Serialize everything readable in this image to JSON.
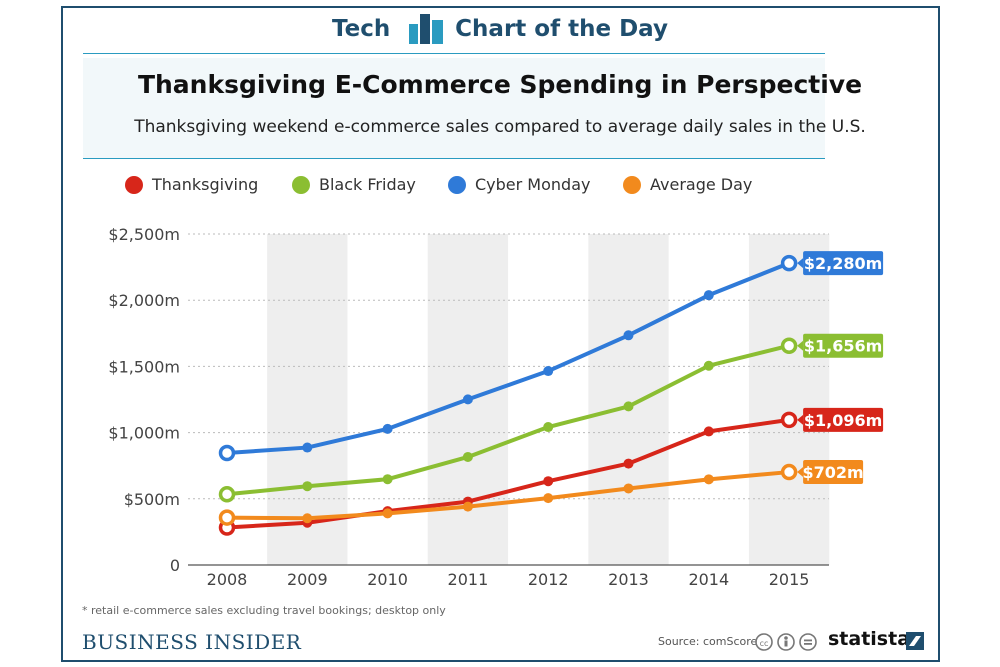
{
  "header": {
    "left_word": "Tech",
    "right_words": "Chart of the Day"
  },
  "footer": {
    "footnote": "* retail e-commerce sales excluding travel bookings; desktop only",
    "publisher": "BUSINESS INSIDER",
    "source": "Source: comScore",
    "brand": "statista"
  },
  "colors": {
    "navy": "#1f4e6e",
    "teal": "#2a9bc0"
  },
  "chart_data": {
    "type": "line",
    "title": "Thanksgiving E-Commerce Spending in Perspective",
    "subtitle": "Thanksgiving weekend e-commerce sales compared to average daily sales in the U.S.",
    "x": [
      "2008",
      "2009",
      "2010",
      "2011",
      "2012",
      "2013",
      "2014",
      "2015"
    ],
    "ylim": [
      0,
      2500
    ],
    "yticks": [
      {
        "value": 0,
        "label": "0"
      },
      {
        "value": 500,
        "label": "$500m"
      },
      {
        "value": 1000,
        "label": "$1,000m"
      },
      {
        "value": 1500,
        "label": "$1,500m"
      },
      {
        "value": 2000,
        "label": "$2,000m"
      },
      {
        "value": 2500,
        "label": "$2,500m"
      }
    ],
    "legend_position": "top",
    "series": [
      {
        "name": "Thanksgiving",
        "color": "#d7261a",
        "values": [
          283,
          319,
          407,
          479,
          633,
          766,
          1009,
          1096
        ],
        "end_label": "$1,096m"
      },
      {
        "name": "Black Friday",
        "color": "#8bbe32",
        "values": [
          534,
          595,
          648,
          816,
          1042,
          1198,
          1505,
          1656
        ],
        "end_label": "$1,656m"
      },
      {
        "name": "Cyber Monday",
        "color": "#2f7ad8",
        "values": [
          846,
          887,
          1028,
          1251,
          1465,
          1735,
          2038,
          2280
        ],
        "end_label": "$2,280m"
      },
      {
        "name": "Average Day",
        "color": "#f28a1d",
        "values": [
          358,
          353,
          390,
          441,
          505,
          578,
          647,
          702
        ],
        "end_label": "$702m"
      }
    ]
  }
}
